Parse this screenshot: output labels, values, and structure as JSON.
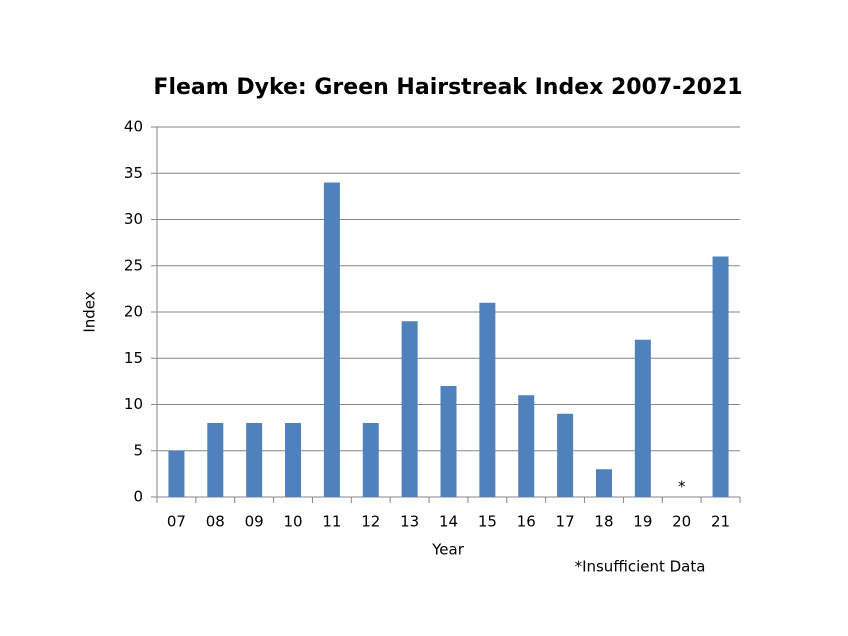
{
  "chart_data": {
    "type": "bar",
    "title": "Fleam Dyke:  Green Hairstreak Index 2007-2021",
    "x_label": "Year",
    "y_label": "Index",
    "categories": [
      "07",
      "08",
      "09",
      "10",
      "11",
      "12",
      "13",
      "14",
      "15",
      "16",
      "17",
      "18",
      "19",
      "20",
      "21"
    ],
    "values": [
      5,
      8,
      8,
      8,
      34,
      8,
      19,
      12,
      21,
      11,
      9,
      3,
      17,
      null,
      26
    ],
    "color": "#4f81bd",
    "ylim": [
      0,
      40
    ],
    "yticks": [
      0,
      5,
      10,
      15,
      20,
      25,
      30,
      35,
      40
    ],
    "grid": true,
    "annotation": "*",
    "footnote": "*Insufficient Data"
  }
}
